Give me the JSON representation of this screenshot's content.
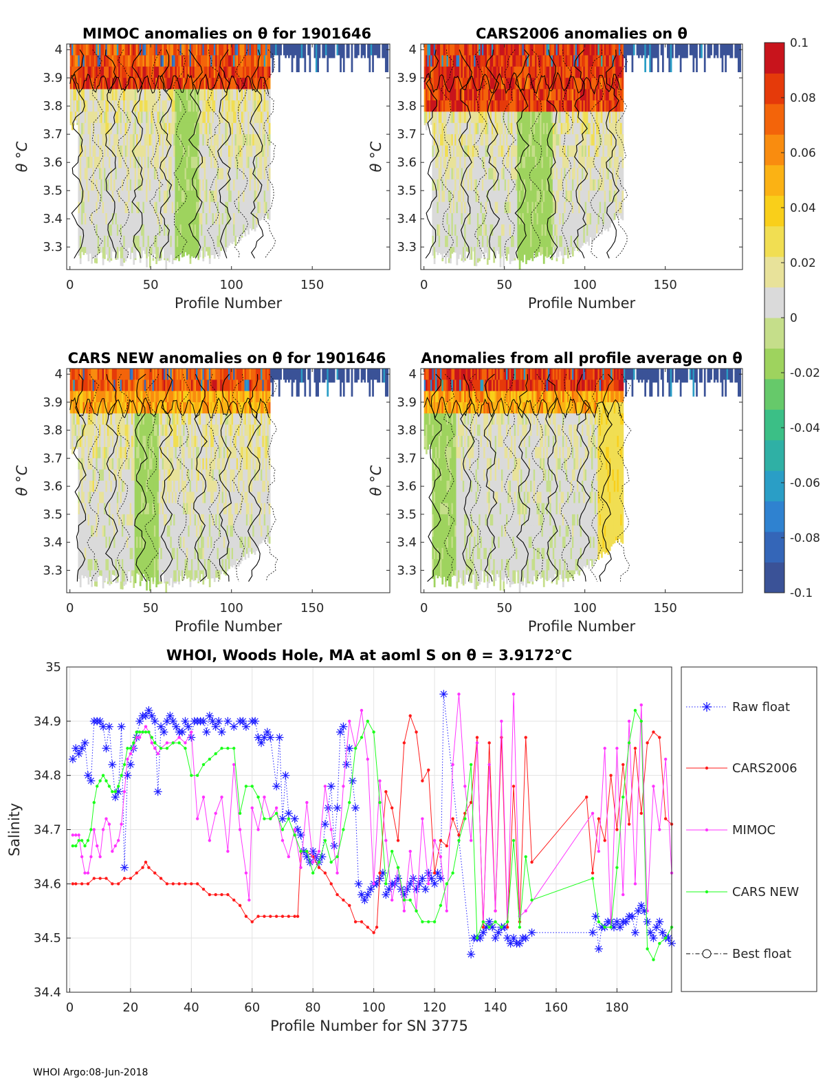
{
  "footer": "WHOI Argo:08-Jun-2018",
  "colors": {
    "raw": "#1a1aff",
    "cars2006": "#ff1a1a",
    "mimoc": "#ff33ff",
    "carsnew": "#1aff1a",
    "best": "#000000",
    "colormap": [
      "#3a5297",
      "#3466b8",
      "#2f82d0",
      "#2a9ec6",
      "#2fb0a5",
      "#3bbf86",
      "#66c96a",
      "#9ed35e",
      "#c5de8a",
      "#dadada",
      "#e8e29a",
      "#f1de52",
      "#f9cf1a",
      "#fbb214",
      "#f98c0f",
      "#f3640a",
      "#e53a0a",
      "#c8141c"
    ]
  },
  "colorbar": {
    "ticks": [
      "0.1",
      "0.08",
      "0.06",
      "0.04",
      "0.02",
      "0",
      "-0.02",
      "-0.04",
      "-0.06",
      "-0.08",
      "-0.1"
    ],
    "range": [
      -0.1,
      0.1
    ]
  },
  "heatmaps": [
    {
      "title": "MIMOC anomalies on θ  for 1901646",
      "xlabel": "Profile Number",
      "ylabel": "θ °C",
      "xticks": [
        "0",
        "50",
        "100",
        "150"
      ],
      "yticks": [
        "4",
        "3.9",
        "3.8",
        "3.7",
        "3.6",
        "3.5",
        "3.4",
        "3.3"
      ],
      "xlim": [
        -2,
        198
      ],
      "ylim": [
        3.22,
        4.02
      ]
    },
    {
      "title": "CARS2006 anomalies on θ",
      "xlabel": "Profile Number",
      "ylabel": "θ °C",
      "xticks": [
        "0",
        "50",
        "100",
        "150"
      ],
      "yticks": [
        "4",
        "3.9",
        "3.8",
        "3.7",
        "3.6",
        "3.5",
        "3.4",
        "3.3"
      ],
      "xlim": [
        -2,
        198
      ],
      "ylim": [
        3.22,
        4.02
      ]
    },
    {
      "title": "CARS NEW anomalies on θ for 1901646",
      "xlabel": "Profile Number",
      "ylabel": "θ °C",
      "xticks": [
        "0",
        "50",
        "100",
        "150"
      ],
      "yticks": [
        "4",
        "3.9",
        "3.8",
        "3.7",
        "3.6",
        "3.5",
        "3.4",
        "3.3"
      ],
      "xlim": [
        -2,
        198
      ],
      "ylim": [
        3.22,
        4.02
      ]
    },
    {
      "title": "Anomalies from all profile average on θ",
      "xlabel": "Profile Number",
      "ylabel": "θ °C",
      "xticks": [
        "0",
        "50",
        "100",
        "150"
      ],
      "yticks": [
        "4",
        "3.9",
        "3.8",
        "3.7",
        "3.6",
        "3.5",
        "3.4",
        "3.3"
      ],
      "xlim": [
        -2,
        198
      ],
      "ylim": [
        3.22,
        4.02
      ]
    }
  ],
  "chart_data": {
    "type": "line",
    "title": "WHOI, Woods Hole, MA at aoml S on θ = 3.9172°C",
    "xlabel": "Profile Number for SN 3775",
    "ylabel": "Salinity",
    "xlim": [
      -1,
      198
    ],
    "ylim": [
      34.4,
      35.0
    ],
    "xticks": [
      0,
      20,
      40,
      60,
      80,
      100,
      120,
      140,
      160,
      180
    ],
    "yticks": [
      34.4,
      34.5,
      34.6,
      34.7,
      34.8,
      34.9,
      35.0
    ],
    "ytick_labels": [
      "34.4",
      "34.5",
      "34.6",
      "34.7",
      "34.8",
      "34.9",
      "35"
    ],
    "legend": [
      "Raw float",
      "CARS2006",
      "MIMOC",
      "CARS NEW",
      "Best float"
    ],
    "legend_position": "outside-right",
    "series": [
      {
        "name": "Raw float",
        "style": "dotted-star",
        "x": [
          1,
          2,
          3,
          4,
          5,
          6,
          7,
          8,
          9,
          10,
          11,
          12,
          13,
          14,
          15,
          16,
          17,
          18,
          19,
          20,
          21,
          22,
          23,
          24,
          25,
          26,
          27,
          28,
          29,
          30,
          31,
          32,
          33,
          34,
          35,
          36,
          37,
          38,
          39,
          40,
          41,
          42,
          43,
          44,
          45,
          46,
          47,
          48,
          49,
          50,
          52,
          54,
          56,
          57,
          58,
          60,
          61,
          62,
          63,
          64,
          65,
          66,
          68,
          69,
          70,
          71,
          72,
          74,
          75,
          76,
          77,
          78,
          79,
          80,
          81,
          82,
          83,
          84,
          85,
          86,
          87,
          88,
          89,
          90,
          91,
          92,
          93,
          94,
          95,
          96,
          97,
          98,
          99,
          100,
          101,
          102,
          103,
          104,
          105,
          106,
          107,
          108,
          109,
          110,
          111,
          112,
          113,
          114,
          115,
          116,
          117,
          118,
          119,
          120,
          121,
          122,
          123,
          132,
          133,
          134,
          135,
          136,
          137,
          138,
          139,
          140,
          141,
          142,
          143,
          144,
          145,
          146,
          147,
          148,
          149,
          150,
          152,
          172,
          173,
          174,
          175,
          176,
          177,
          178,
          179,
          180,
          181,
          182,
          183,
          184,
          185,
          186,
          187,
          188,
          189,
          190,
          191,
          192,
          193,
          194,
          195,
          196,
          197,
          198
        ],
        "y": [
          34.83,
          34.85,
          34.84,
          34.85,
          34.86,
          34.8,
          34.79,
          34.9,
          34.9,
          34.9,
          34.89,
          34.85,
          34.89,
          34.82,
          34.76,
          34.77,
          34.89,
          34.63,
          34.8,
          34.82,
          34.85,
          34.87,
          34.9,
          34.91,
          34.91,
          34.92,
          34.91,
          34.9,
          34.77,
          34.89,
          34.88,
          34.9,
          34.91,
          34.9,
          34.89,
          34.88,
          34.88,
          34.9,
          34.89,
          34.87,
          34.9,
          34.9,
          34.9,
          34.9,
          34.88,
          34.91,
          34.9,
          34.89,
          34.9,
          34.88,
          34.9,
          34.89,
          34.9,
          34.9,
          34.89,
          34.9,
          34.9,
          34.87,
          34.86,
          34.87,
          34.88,
          34.87,
          34.78,
          34.87,
          34.72,
          34.8,
          34.73,
          34.72,
          34.7,
          34.69,
          34.66,
          34.65,
          34.64,
          34.66,
          34.65,
          34.64,
          34.65,
          34.71,
          34.74,
          34.78,
          34.67,
          34.74,
          34.88,
          34.89,
          34.82,
          34.85,
          34.79,
          34.74,
          34.6,
          34.58,
          34.57,
          34.58,
          34.59,
          34.6,
          34.6,
          34.61,
          34.62,
          34.58,
          34.59,
          34.6,
          34.6,
          34.61,
          34.59,
          34.58,
          34.59,
          34.6,
          34.61,
          34.59,
          34.6,
          34.61,
          34.59,
          34.62,
          34.61,
          34.6,
          34.62,
          34.61,
          34.95,
          34.47,
          34.5,
          34.5,
          34.5,
          34.51,
          34.52,
          34.53,
          34.52,
          34.5,
          34.51,
          34.52,
          34.52,
          34.5,
          34.49,
          34.5,
          34.49,
          34.49,
          34.5,
          34.5,
          34.51,
          34.51,
          34.54,
          34.48,
          34.52,
          34.52,
          34.53,
          34.53,
          34.52,
          34.53,
          34.52,
          34.53,
          34.53,
          34.54,
          34.54,
          34.51,
          34.55,
          34.56,
          34.55,
          34.53,
          34.51,
          34.5,
          34.52,
          34.53,
          34.51,
          34.5,
          34.5,
          34.49
        ]
      },
      {
        "name": "CARS2006",
        "style": "solid-dot",
        "x": [
          1,
          2,
          4,
          6,
          8,
          10,
          12,
          14,
          16,
          18,
          20,
          22,
          24,
          25,
          26,
          28,
          30,
          32,
          34,
          36,
          38,
          40,
          42,
          44,
          46,
          48,
          50,
          52,
          54,
          56,
          58,
          60,
          62,
          64,
          66,
          68,
          70,
          72,
          74,
          75,
          76,
          78,
          80,
          82,
          84,
          86,
          88,
          90,
          92,
          94,
          96,
          98,
          100,
          101,
          102,
          104,
          106,
          108,
          110,
          112,
          114,
          116,
          118,
          120,
          122,
          124,
          126,
          128,
          130,
          132,
          134,
          136,
          138,
          140,
          142,
          144,
          146,
          148,
          150,
          152,
          170,
          172,
          174,
          176,
          178,
          180,
          182,
          184,
          186,
          188,
          190,
          192,
          194,
          196,
          198
        ],
        "y": [
          34.6,
          34.6,
          34.6,
          34.6,
          34.61,
          34.61,
          34.61,
          34.6,
          34.6,
          34.61,
          34.61,
          34.62,
          34.63,
          34.64,
          34.63,
          34.62,
          34.61,
          34.6,
          34.6,
          34.6,
          34.6,
          34.6,
          34.6,
          34.59,
          34.58,
          34.58,
          34.58,
          34.58,
          34.57,
          34.56,
          34.54,
          34.53,
          34.54,
          34.54,
          34.54,
          34.54,
          34.54,
          34.54,
          34.54,
          34.54,
          34.66,
          34.66,
          34.65,
          34.63,
          34.62,
          34.6,
          34.58,
          34.57,
          34.56,
          34.53,
          34.53,
          34.52,
          34.51,
          34.52,
          34.62,
          34.77,
          34.74,
          34.68,
          34.86,
          34.91,
          34.88,
          34.79,
          34.81,
          34.62,
          34.68,
          34.67,
          34.72,
          34.69,
          34.73,
          34.75,
          34.87,
          34.52,
          34.86,
          34.55,
          34.87,
          34.52,
          34.78,
          34.53,
          34.87,
          34.64,
          34.76,
          34.62,
          34.72,
          34.68,
          34.8,
          34.7,
          34.82,
          34.71,
          34.85,
          34.73,
          34.86,
          34.88,
          34.87,
          34.72,
          34.71
        ]
      },
      {
        "name": "MIMOC",
        "style": "solid-dot",
        "x": [
          1,
          2,
          3,
          4,
          5,
          6,
          7,
          8,
          9,
          10,
          11,
          12,
          13,
          14,
          15,
          16,
          17,
          18,
          19,
          20,
          21,
          22,
          23,
          24,
          25,
          26,
          27,
          28,
          29,
          30,
          32,
          34,
          36,
          38,
          40,
          42,
          44,
          46,
          48,
          50,
          52,
          54,
          56,
          58,
          59,
          60,
          62,
          64,
          66,
          68,
          70,
          72,
          74,
          76,
          78,
          80,
          82,
          84,
          86,
          88,
          90,
          92,
          94,
          96,
          98,
          100,
          102,
          104,
          106,
          108,
          110,
          112,
          114,
          116,
          118,
          120,
          122,
          124,
          126,
          128,
          130,
          132,
          134,
          136,
          138,
          140,
          142,
          144,
          146,
          148,
          150,
          172,
          174,
          176,
          178,
          180,
          182,
          184,
          186,
          188,
          190,
          192,
          194,
          196,
          198
        ],
        "y": [
          34.69,
          34.69,
          34.69,
          34.65,
          34.62,
          34.62,
          34.65,
          34.7,
          34.67,
          34.65,
          34.7,
          34.72,
          34.71,
          34.66,
          34.67,
          34.68,
          34.71,
          34.77,
          34.83,
          34.84,
          34.85,
          34.87,
          34.87,
          34.88,
          34.89,
          34.88,
          34.86,
          34.85,
          34.84,
          34.85,
          34.86,
          34.86,
          34.87,
          34.86,
          34.88,
          34.72,
          34.76,
          34.68,
          34.73,
          34.76,
          34.66,
          34.82,
          34.7,
          34.62,
          34.57,
          34.74,
          34.7,
          34.76,
          34.72,
          34.74,
          34.68,
          34.65,
          34.7,
          34.63,
          34.75,
          34.64,
          34.66,
          34.78,
          34.7,
          34.62,
          34.78,
          34.9,
          34.85,
          34.92,
          34.83,
          34.6,
          34.79,
          34.68,
          34.57,
          34.63,
          34.55,
          34.66,
          34.55,
          34.72,
          34.6,
          34.68,
          34.65,
          34.55,
          34.82,
          34.95,
          34.78,
          34.68,
          34.86,
          34.53,
          34.82,
          34.55,
          34.9,
          34.53,
          34.95,
          34.54,
          34.55,
          34.73,
          34.66,
          34.85,
          34.52,
          34.85,
          34.58,
          34.9,
          34.6,
          34.93,
          34.55,
          34.78,
          34.7,
          34.83,
          34.62
        ]
      },
      {
        "name": "CARS NEW",
        "style": "solid-dot",
        "x": [
          1,
          2,
          3,
          4,
          5,
          6,
          7,
          8,
          9,
          10,
          11,
          12,
          13,
          14,
          15,
          16,
          17,
          18,
          19,
          20,
          21,
          22,
          23,
          24,
          25,
          26,
          27,
          28,
          30,
          32,
          34,
          36,
          38,
          40,
          42,
          44,
          46,
          48,
          50,
          52,
          54,
          56,
          58,
          60,
          62,
          64,
          66,
          68,
          70,
          72,
          74,
          76,
          78,
          80,
          82,
          84,
          86,
          88,
          90,
          92,
          94,
          96,
          98,
          100,
          102,
          104,
          106,
          108,
          110,
          112,
          114,
          116,
          118,
          120,
          122,
          124,
          126,
          128,
          130,
          132,
          134,
          136,
          138,
          140,
          142,
          144,
          146,
          148,
          150,
          152,
          172,
          174,
          176,
          178,
          180,
          182,
          184,
          186,
          188,
          190,
          192,
          194,
          196,
          198
        ],
        "y": [
          34.67,
          34.67,
          34.68,
          34.68,
          34.67,
          34.68,
          34.7,
          34.75,
          34.78,
          34.79,
          34.8,
          34.79,
          34.78,
          34.77,
          34.77,
          34.78,
          34.8,
          34.82,
          34.85,
          34.85,
          34.86,
          34.88,
          34.88,
          34.88,
          34.88,
          34.88,
          34.87,
          34.86,
          34.85,
          34.85,
          34.86,
          34.86,
          34.85,
          34.8,
          34.8,
          34.82,
          34.83,
          34.84,
          34.85,
          34.85,
          34.85,
          34.73,
          34.78,
          34.78,
          34.76,
          34.72,
          34.72,
          34.73,
          34.7,
          34.72,
          34.69,
          34.66,
          34.66,
          34.62,
          34.64,
          34.68,
          34.64,
          34.65,
          34.7,
          34.75,
          34.85,
          34.87,
          34.9,
          34.88,
          34.75,
          34.6,
          34.66,
          34.63,
          34.57,
          34.57,
          34.55,
          34.53,
          34.53,
          34.53,
          34.56,
          34.6,
          34.62,
          34.68,
          34.72,
          34.82,
          34.5,
          34.53,
          34.52,
          34.53,
          34.52,
          34.53,
          34.68,
          34.52,
          34.65,
          34.57,
          34.61,
          34.53,
          34.52,
          34.52,
          34.63,
          34.76,
          34.86,
          34.92,
          34.9,
          34.48,
          34.46,
          34.49,
          34.5,
          34.52
        ]
      },
      {
        "name": "Best float",
        "style": "dashdot-circle",
        "x": [],
        "y": []
      }
    ]
  }
}
